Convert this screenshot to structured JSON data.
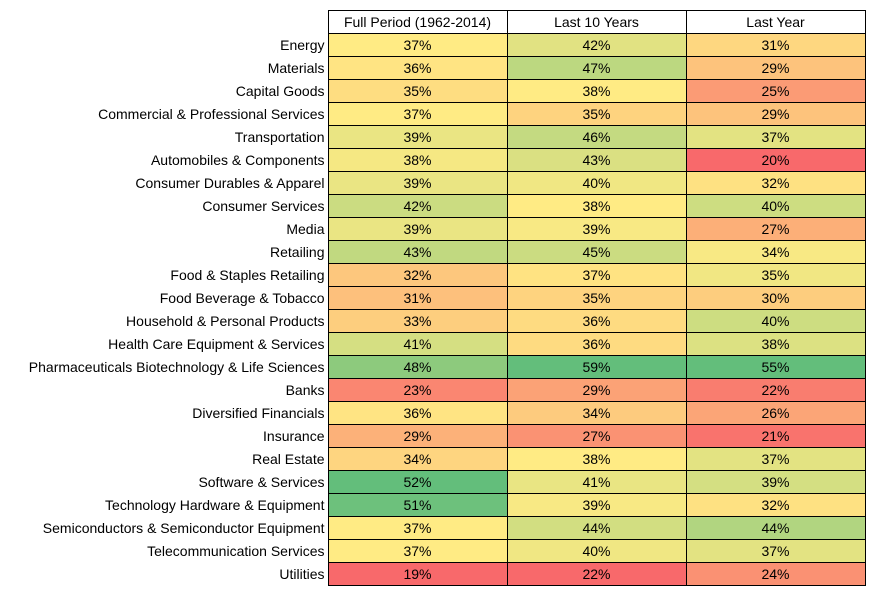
{
  "chart_data": {
    "type": "heatmap",
    "value_format": "percent",
    "columns": [
      "Full Period (1962-2014)",
      "Last 10 Years",
      "Last Year"
    ],
    "rows": [
      {
        "label": "Energy",
        "values": [
          37,
          42,
          31
        ]
      },
      {
        "label": "Materials",
        "values": [
          36,
          47,
          29
        ]
      },
      {
        "label": "Capital Goods",
        "values": [
          35,
          38,
          25
        ]
      },
      {
        "label": "Commercial & Professional Services",
        "values": [
          37,
          35,
          29
        ]
      },
      {
        "label": "Transportation",
        "values": [
          39,
          46,
          37
        ]
      },
      {
        "label": "Automobiles & Components",
        "values": [
          38,
          43,
          20
        ]
      },
      {
        "label": "Consumer Durables & Apparel",
        "values": [
          39,
          40,
          32
        ]
      },
      {
        "label": "Consumer Services",
        "values": [
          42,
          38,
          40
        ]
      },
      {
        "label": "Media",
        "values": [
          39,
          39,
          27
        ]
      },
      {
        "label": "Retailing",
        "values": [
          43,
          45,
          34
        ]
      },
      {
        "label": "Food & Staples Retailing",
        "values": [
          32,
          37,
          35
        ]
      },
      {
        "label": "Food Beverage & Tobacco",
        "values": [
          31,
          35,
          30
        ]
      },
      {
        "label": "Household & Personal Products",
        "values": [
          33,
          36,
          40
        ]
      },
      {
        "label": "Health Care Equipment & Services",
        "values": [
          41,
          36,
          38
        ]
      },
      {
        "label": "Pharmaceuticals Biotechnology & Life Sciences",
        "values": [
          48,
          59,
          55
        ]
      },
      {
        "label": "Banks",
        "values": [
          23,
          29,
          22
        ]
      },
      {
        "label": "Diversified Financials",
        "values": [
          36,
          34,
          26
        ]
      },
      {
        "label": "Insurance",
        "values": [
          29,
          27,
          21
        ]
      },
      {
        "label": "Real Estate",
        "values": [
          34,
          38,
          37
        ]
      },
      {
        "label": "Software & Services",
        "values": [
          52,
          41,
          39
        ]
      },
      {
        "label": "Technology Hardware & Equipment",
        "values": [
          51,
          39,
          32
        ]
      },
      {
        "label": "Semiconductors & Semiconductor Equipment",
        "values": [
          37,
          44,
          44
        ]
      },
      {
        "label": "Telecommunication Services",
        "values": [
          37,
          40,
          37
        ]
      },
      {
        "label": "Utilities",
        "values": [
          19,
          22,
          24
        ]
      }
    ],
    "column_scales": [
      {
        "low": "#f8696b",
        "mid": "#ffeb84",
        "high": "#63be7b",
        "min": 19,
        "mid_value": 37,
        "max": 52
      },
      {
        "low": "#f8696b",
        "mid": "#ffeb84",
        "high": "#63be7b",
        "min": 22,
        "mid_value": 38,
        "max": 59
      },
      {
        "low": "#f8696b",
        "mid": "#ffeb84",
        "high": "#63be7b",
        "min": 20,
        "mid_value": 33,
        "max": 55
      }
    ]
  }
}
